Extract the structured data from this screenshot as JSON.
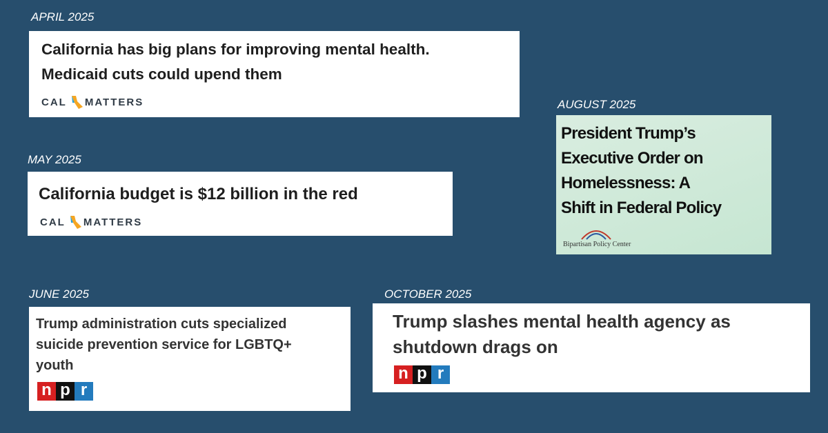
{
  "cards": [
    {
      "date": "APRIL 2025",
      "headline": [
        "California has big plans for improving mental health.",
        "Medicaid cuts could upend them"
      ],
      "source": [
        "CAL",
        "MATTERS"
      ]
    },
    {
      "date": "MAY 2025",
      "headline": [
        "California budget is $12 billion in the red"
      ],
      "source": [
        "CAL",
        "MATTERS"
      ]
    },
    {
      "date": "AUGUST 2025",
      "headline": [
        "President Trump’s",
        "Executive Order on",
        "Homelessness: A",
        "Shift in Federal Policy"
      ],
      "source": [
        "Bipartisan Policy Center"
      ]
    },
    {
      "date": "JUNE 2025",
      "headline": [
        "Trump administration cuts specialized",
        "suicide prevention service for LGBTQ+",
        "youth"
      ],
      "source": [
        "n",
        "p",
        "r"
      ]
    },
    {
      "date": "OCTOBER 2025",
      "headline": [
        "Trump slashes mental health agency as",
        "shutdown drags on"
      ],
      "source": [
        "n",
        "p",
        "r"
      ]
    }
  ]
}
